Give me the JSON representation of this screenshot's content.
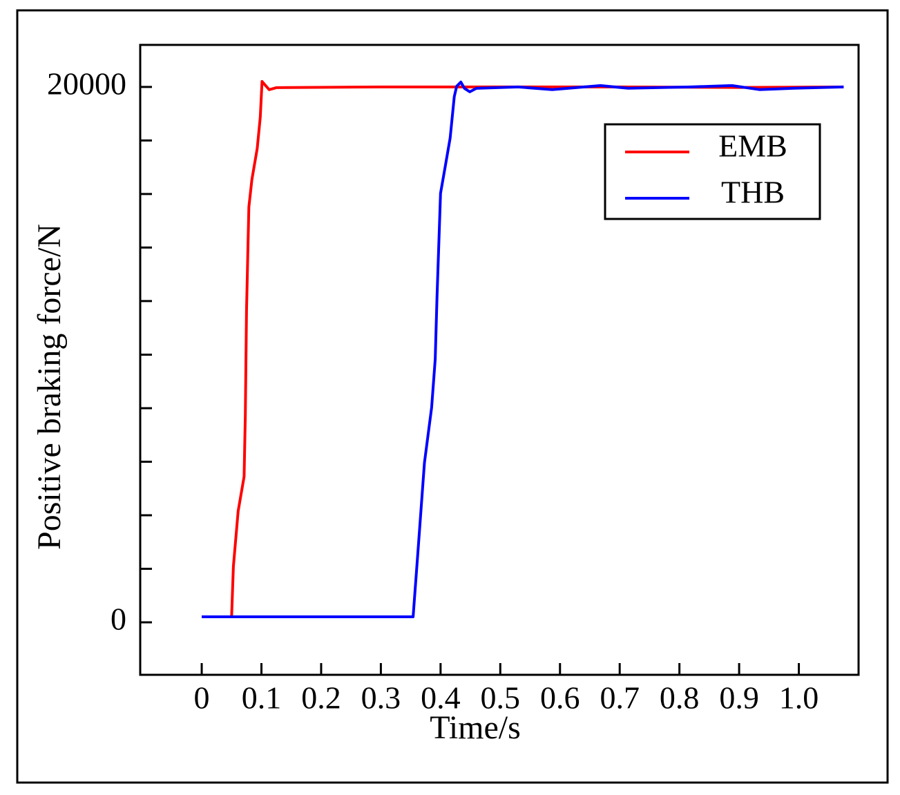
{
  "chart_data": {
    "type": "line",
    "x_label": "Time/s",
    "y_label": "Positive braking force/N",
    "xlim": [
      -0.103,
      1.1
    ],
    "ylim": [
      -1960,
      21570
    ],
    "xticks": [
      0,
      0.1,
      0.2,
      0.3,
      0.4,
      0.5,
      0.6,
      0.7,
      0.8,
      0.9,
      {
        "value": 1,
        "label": "1.0"
      }
    ],
    "yticks": [
      0,
      20000
    ],
    "yminorticks": [
      2000,
      4000,
      6000,
      8000,
      10000,
      12000,
      14000,
      16000,
      18000
    ],
    "grid": false,
    "legend": "upper right",
    "series": [
      {
        "name": "EMB",
        "color": "#ff0000",
        "x": [
          0,
          0.05,
          0.053,
          0.061,
          0.071,
          0.073,
          0.075,
          0.079,
          0.084,
          0.093,
          0.098,
          0.101,
          0.105,
          0.113,
          0.125,
          0.3,
          0.5,
          0.7,
          0.9,
          1.075
        ],
        "values": [
          206,
          206,
          2090,
          4155,
          5445,
          7768,
          11639,
          15510,
          16542,
          17703,
          18865,
          20206,
          20103,
          19897,
          19974,
          20000,
          20000,
          20000,
          19980,
          20000
        ]
      },
      {
        "name": "THB",
        "color": "#0000ff",
        "x": [
          0,
          0.354,
          0.356,
          0.362,
          0.373,
          0.385,
          0.391,
          0.394,
          0.4,
          0.408,
          0.416,
          0.423,
          0.427,
          0.434,
          0.44,
          0.449,
          0.46,
          0.53,
          0.587,
          0.668,
          0.714,
          0.818,
          0.888,
          0.934,
          0.992,
          1.075
        ],
        "values": [
          206,
          206,
          800,
          2606,
          5961,
          8026,
          9832,
          12155,
          16026,
          17058,
          18090,
          19639,
          20026,
          20181,
          19948,
          19819,
          19948,
          20000,
          19900,
          20050,
          19950,
          20000,
          20050,
          19900,
          19950,
          20000
        ]
      }
    ]
  }
}
